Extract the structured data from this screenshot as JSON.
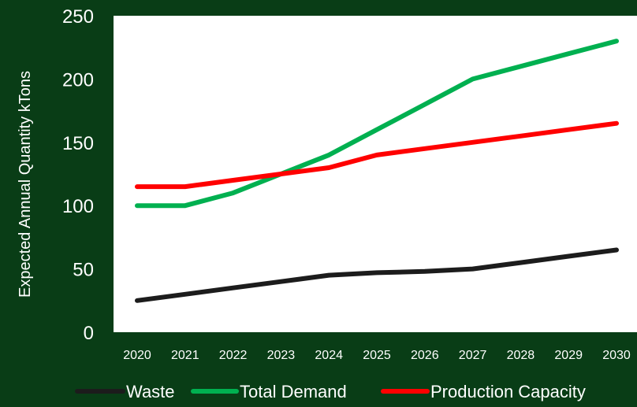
{
  "chart_data": {
    "type": "line",
    "title": "",
    "xlabel": "",
    "ylabel": "Expected Annual Quantity kTons",
    "x": [
      "2020",
      "2021",
      "2022",
      "2023",
      "2024",
      "2025",
      "2026",
      "2027",
      "2028",
      "2029",
      "2030"
    ],
    "ylim": [
      0,
      250
    ],
    "yticks": [
      0,
      50,
      100,
      150,
      200,
      250
    ],
    "grid": false,
    "legend_position": "bottom",
    "colors": {
      "background": "#093d16",
      "plot_area": "#ffffff"
    },
    "series": [
      {
        "name": "Waste",
        "color": "#1c1c1c",
        "values": [
          25,
          30,
          35,
          40,
          45,
          47,
          48,
          50,
          55,
          60,
          65
        ]
      },
      {
        "name": "Total Demand",
        "color": "#00b050",
        "values": [
          100,
          100,
          110,
          125,
          140,
          160,
          180,
          200,
          210,
          220,
          230
        ]
      },
      {
        "name": "Production Capacity",
        "color": "#ff0000",
        "values": [
          115,
          115,
          120,
          125,
          130,
          140,
          145,
          150,
          155,
          160,
          165
        ]
      }
    ]
  }
}
